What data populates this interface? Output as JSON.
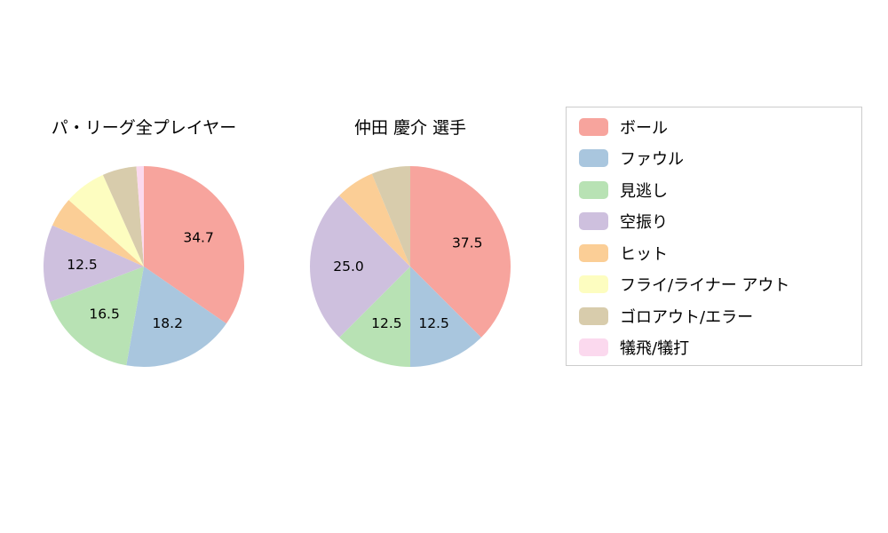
{
  "chart_data": [
    {
      "type": "pie",
      "title": "パ・リーグ全プレイヤー",
      "start_angle_deg": 0,
      "direction": "clockwise",
      "slices": [
        {
          "label": "ボール",
          "value": 34.7,
          "text": "34.7",
          "color": "#F7A49D"
        },
        {
          "label": "ファウル",
          "value": 18.2,
          "text": "18.2",
          "color": "#A9C6DE"
        },
        {
          "label": "見逃し",
          "value": 16.5,
          "text": "16.5",
          "color": "#B8E2B4"
        },
        {
          "label": "空振り",
          "value": 12.5,
          "text": "12.5",
          "color": "#CEC0DE"
        },
        {
          "label": "ヒット",
          "value": 4.8,
          "text": "",
          "color": "#FBCE96"
        },
        {
          "label": "フライ/ライナー アウト",
          "value": 6.8,
          "text": "",
          "color": "#FDFDC0"
        },
        {
          "label": "ゴロアウト/エラー",
          "value": 5.5,
          "text": "",
          "color": "#D8CCAC"
        },
        {
          "label": "犠飛/犠打",
          "value": 1.2,
          "text": "",
          "color": "#FBD9EE"
        }
      ]
    },
    {
      "type": "pie",
      "title": "仲田 慶介  選手",
      "start_angle_deg": 0,
      "direction": "clockwise",
      "slices": [
        {
          "label": "ボール",
          "value": 37.5,
          "text": "37.5",
          "color": "#F7A49D"
        },
        {
          "label": "ファウル",
          "value": 12.5,
          "text": "12.5",
          "color": "#A9C6DE"
        },
        {
          "label": "見逃し",
          "value": 12.5,
          "text": "12.5",
          "color": "#B8E2B4"
        },
        {
          "label": "空振り",
          "value": 25.0,
          "text": "25.0",
          "color": "#CEC0DE"
        },
        {
          "label": "ヒット",
          "value": 6.25,
          "text": "",
          "color": "#FBCE96"
        },
        {
          "label": "ゴロアウト/エラー",
          "value": 6.25,
          "text": "",
          "color": "#D8CCAC"
        }
      ]
    }
  ],
  "legend": {
    "items": [
      {
        "label": "ボール",
        "color": "#F7A49D"
      },
      {
        "label": "ファウル",
        "color": "#A9C6DE"
      },
      {
        "label": "見逃し",
        "color": "#B8E2B4"
      },
      {
        "label": "空振り",
        "color": "#CEC0DE"
      },
      {
        "label": "ヒット",
        "color": "#FBCE96"
      },
      {
        "label": "フライ/ライナー アウト",
        "color": "#FDFDC0"
      },
      {
        "label": "ゴロアウト/エラー",
        "color": "#D8CCAC"
      },
      {
        "label": "犠飛/犠打",
        "color": "#FBD9EE"
      }
    ]
  }
}
